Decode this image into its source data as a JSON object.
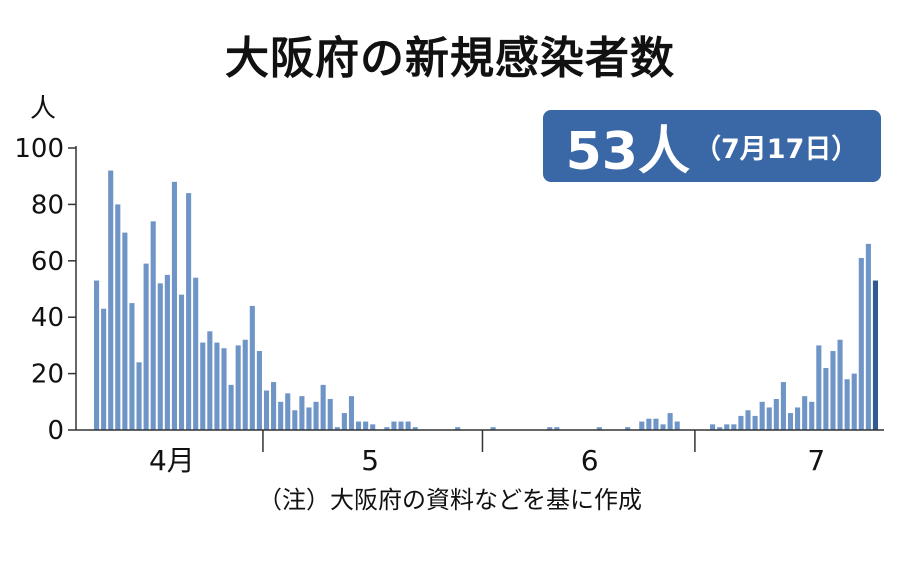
{
  "chart_data": {
    "type": "bar",
    "title": "大阪府の新規感染者数",
    "highlight": {
      "value": "53人",
      "date": "（7月17日）"
    },
    "y_unit": "人",
    "ylim": [
      0,
      100
    ],
    "y_ticks": [
      "100",
      "80",
      "60",
      "40",
      "20",
      "0"
    ],
    "x_month_labels": [
      "4月",
      "5",
      "6",
      "7"
    ],
    "note": "（注）大阪府の資料などを基に作成",
    "values": [
      53,
      43,
      92,
      80,
      70,
      45,
      24,
      59,
      74,
      52,
      55,
      88,
      48,
      84,
      54,
      31,
      35,
      31,
      29,
      16,
      30,
      32,
      44,
      28,
      14,
      17,
      10,
      13,
      7,
      12,
      8,
      10,
      16,
      11,
      1,
      6,
      12,
      3,
      3,
      2,
      0,
      1,
      3,
      3,
      3,
      1,
      0,
      0,
      0,
      0,
      0,
      1,
      0,
      0,
      0,
      0,
      1,
      0,
      0,
      0,
      0,
      0,
      0,
      0,
      1,
      1,
      0,
      0,
      0,
      0,
      0,
      1,
      0,
      0,
      0,
      1,
      0,
      3,
      4,
      4,
      2,
      6,
      3,
      0,
      0,
      0,
      0,
      2,
      1,
      2,
      2,
      5,
      7,
      5,
      10,
      8,
      11,
      17,
      6,
      8,
      12,
      10,
      30,
      22,
      28,
      32,
      18,
      20,
      61,
      66,
      53
    ],
    "colors": {
      "bar": "#6f95c7",
      "bar_latest": "#2f5a94",
      "badge": "#3a67a6"
    }
  }
}
